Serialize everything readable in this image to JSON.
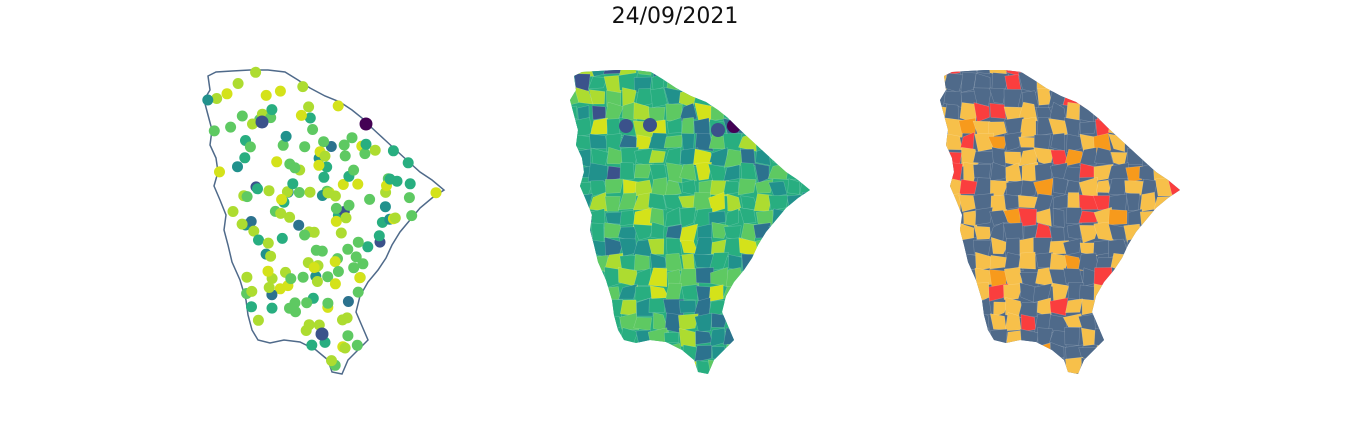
{
  "figure": {
    "title": "24/09/2021",
    "panels": [
      {
        "type": "point-map",
        "outline_color": "#4f6a8a",
        "point_palette": "viridis"
      },
      {
        "type": "choropleth-map",
        "palette": "viridis"
      },
      {
        "type": "categorical-choropleth-map",
        "category_colors": [
          "#4f6a8a",
          "#f7c04a",
          "#f79a1c",
          "#fa3e3e"
        ]
      }
    ]
  },
  "colors": {
    "viridis": [
      "#440154",
      "#3b528b",
      "#2c728e",
      "#21918c",
      "#28ae80",
      "#5ec962",
      "#addc30",
      "#d4e21a"
    ],
    "categorical": [
      "#4f6a8a",
      "#f7c04a",
      "#f79a1c",
      "#fa3e3e"
    ],
    "outline": "#4f6a8a"
  }
}
